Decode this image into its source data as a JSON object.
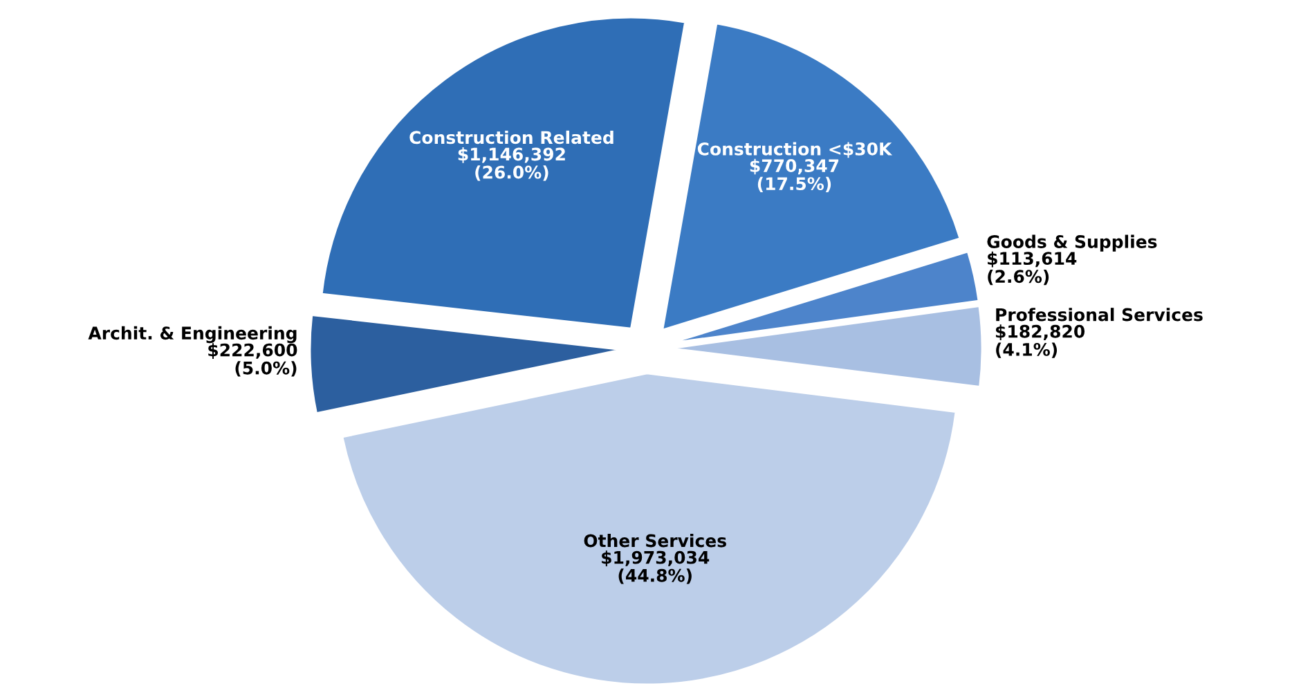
{
  "chart_data": {
    "type": "pie",
    "categories": [
      "Construction <$30K",
      "Goods & Supplies",
      "Professional Services",
      "Other Services",
      "Archit. & Engineering",
      "Construction Related"
    ],
    "values": [
      770347,
      113614,
      182820,
      1973034,
      222600,
      1146392
    ],
    "colors": [
      "#3b7bc4",
      "#4d84cb",
      "#a8bfe2",
      "#bccee9",
      "#2c5f9f",
      "#2f6eb6"
    ],
    "value_labels": [
      "$770,347\n(17.5%)",
      "$113,614\n(2.6%)",
      "$182,820\n(4.1%)",
      "$1,973,034\n(44.8%)",
      "$222,600\n(5.0%)",
      "$1,146,392\n(26.0%)"
    ],
    "legend": false
  }
}
